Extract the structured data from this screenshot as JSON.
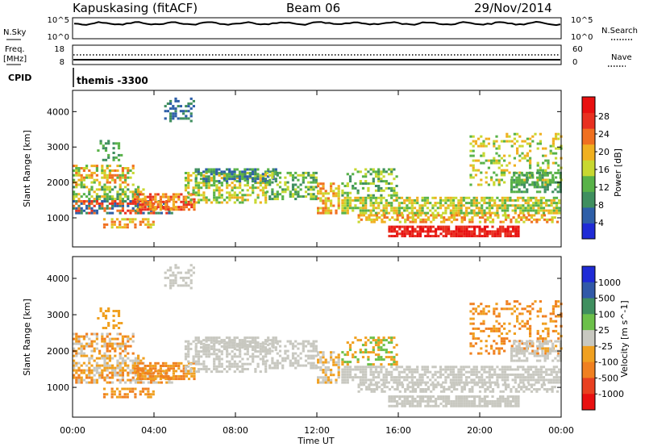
{
  "header": {
    "station": "Kapuskasing (fitACF)",
    "beam": "Beam 06",
    "date": "29/Nov/2014"
  },
  "noise_panel": {
    "left_label": "N.Sky",
    "left_ticks": [
      "10^5",
      "10^0"
    ],
    "right_ticks": [
      "10^5",
      "10^0"
    ],
    "right_label": "N.Search"
  },
  "freq_panel": {
    "left_label_1": "Freq.",
    "left_label_2": "[MHz]",
    "left_ticks": [
      "18",
      "8"
    ],
    "right_ticks": [
      "60",
      "0"
    ],
    "right_label": "Nave"
  },
  "cpid": {
    "label": "CPID",
    "value": "themis -3300"
  },
  "colors": {
    "power_scale": [
      "#1f2bd6",
      "#2e5fa8",
      "#3f8f5f",
      "#58b248",
      "#c8d830",
      "#f0b020",
      "#f07020",
      "#e83020",
      "#e81010"
    ],
    "velocity_scale": [
      "#1f2bd6",
      "#3159a8",
      "#3f8f5f",
      "#6cc04a",
      "#c8c8c0",
      "#f0a020",
      "#f08020",
      "#e84020",
      "#e81010"
    ]
  },
  "chart_data": [
    {
      "type": "heatmap",
      "title": "",
      "quantity": "Power [dB]",
      "xlabel": "Time UT",
      "ylabel": "Slant Range [km]",
      "xlim": [
        "00:00",
        "24:00"
      ],
      "ylim": [
        180,
        4600
      ],
      "x_ticks": [
        "00:00",
        "04:00",
        "08:00",
        "12:00",
        "16:00",
        "20:00",
        "00:00"
      ],
      "y_ticks": [
        1000,
        2000,
        3000,
        4000
      ],
      "colorbar_label": "Power [dB]",
      "colorbar_ticks": [
        "28",
        "24",
        "20",
        "16",
        "12",
        "8",
        "4"
      ],
      "colorbar_range": [
        0,
        32
      ]
    },
    {
      "type": "heatmap",
      "title": "",
      "quantity": "Velocity [m s^-1]",
      "xlabel": "Time UT",
      "ylabel": "Slant Range [km]",
      "xlim": [
        "00:00",
        "24:00"
      ],
      "ylim": [
        180,
        4600
      ],
      "x_ticks": [
        "00:00",
        "04:00",
        "08:00",
        "12:00",
        "16:00",
        "20:00",
        "00:00"
      ],
      "y_ticks": [
        1000,
        2000,
        3000,
        4000
      ],
      "colorbar_label": "Velocity [m s^-1]",
      "colorbar_ticks": [
        "1000",
        "500",
        "100",
        "25",
        "-25",
        "-100",
        "-500",
        "-1000"
      ],
      "colorbar_range": [
        -1000,
        1000
      ]
    }
  ]
}
